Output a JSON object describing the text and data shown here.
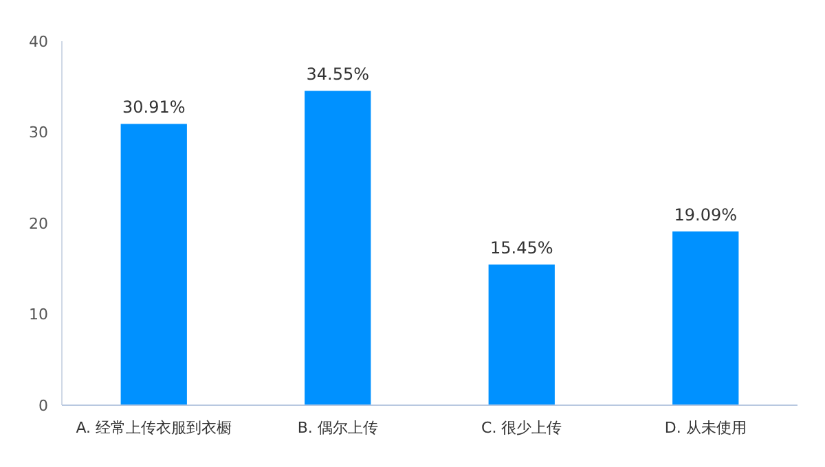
{
  "chart_data": {
    "type": "bar",
    "categories": [
      "A. 经常上传衣服到衣橱",
      "B. 偶尔上传",
      "C. 很少上传",
      "D. 从未使用"
    ],
    "values": [
      30.91,
      34.55,
      15.45,
      19.09
    ],
    "value_labels": [
      "30.91%",
      "34.55%",
      "15.45%",
      "19.09%"
    ],
    "color": "#0091ff",
    "ylim": [
      0,
      40
    ],
    "yticks": [
      0,
      10,
      20,
      30,
      40
    ],
    "grid": false
  }
}
